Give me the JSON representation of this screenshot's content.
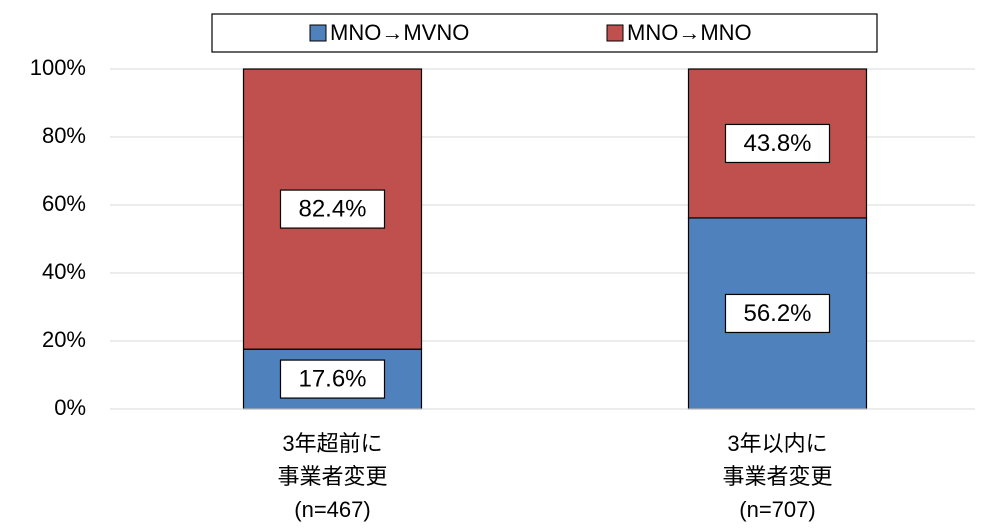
{
  "chart_data": {
    "type": "stacked_bar",
    "categories": [
      "3年超前に\n事業者変更\n(n=467)",
      "3年以内に\n事業者変更\n(n=707)"
    ],
    "series": [
      {
        "name": "MNO→MVNO",
        "color": "#4f81bd",
        "values": [
          17.6,
          56.2
        ],
        "value_labels": [
          "17.6%",
          "56.2%"
        ]
      },
      {
        "name": "MNO→MNO",
        "color": "#c0504d",
        "values": [
          82.4,
          43.8
        ],
        "value_labels": [
          "82.4%",
          "43.8%"
        ]
      }
    ],
    "ylim": [
      0,
      100
    ],
    "yticks": [
      {
        "value": 0,
        "label": "0%"
      },
      {
        "value": 20,
        "label": "20%"
      },
      {
        "value": 40,
        "label": "40%"
      },
      {
        "value": 60,
        "label": "60%"
      },
      {
        "value": 80,
        "label": "80%"
      },
      {
        "value": 100,
        "label": "100%"
      }
    ],
    "grid": true,
    "legend": "top"
  }
}
